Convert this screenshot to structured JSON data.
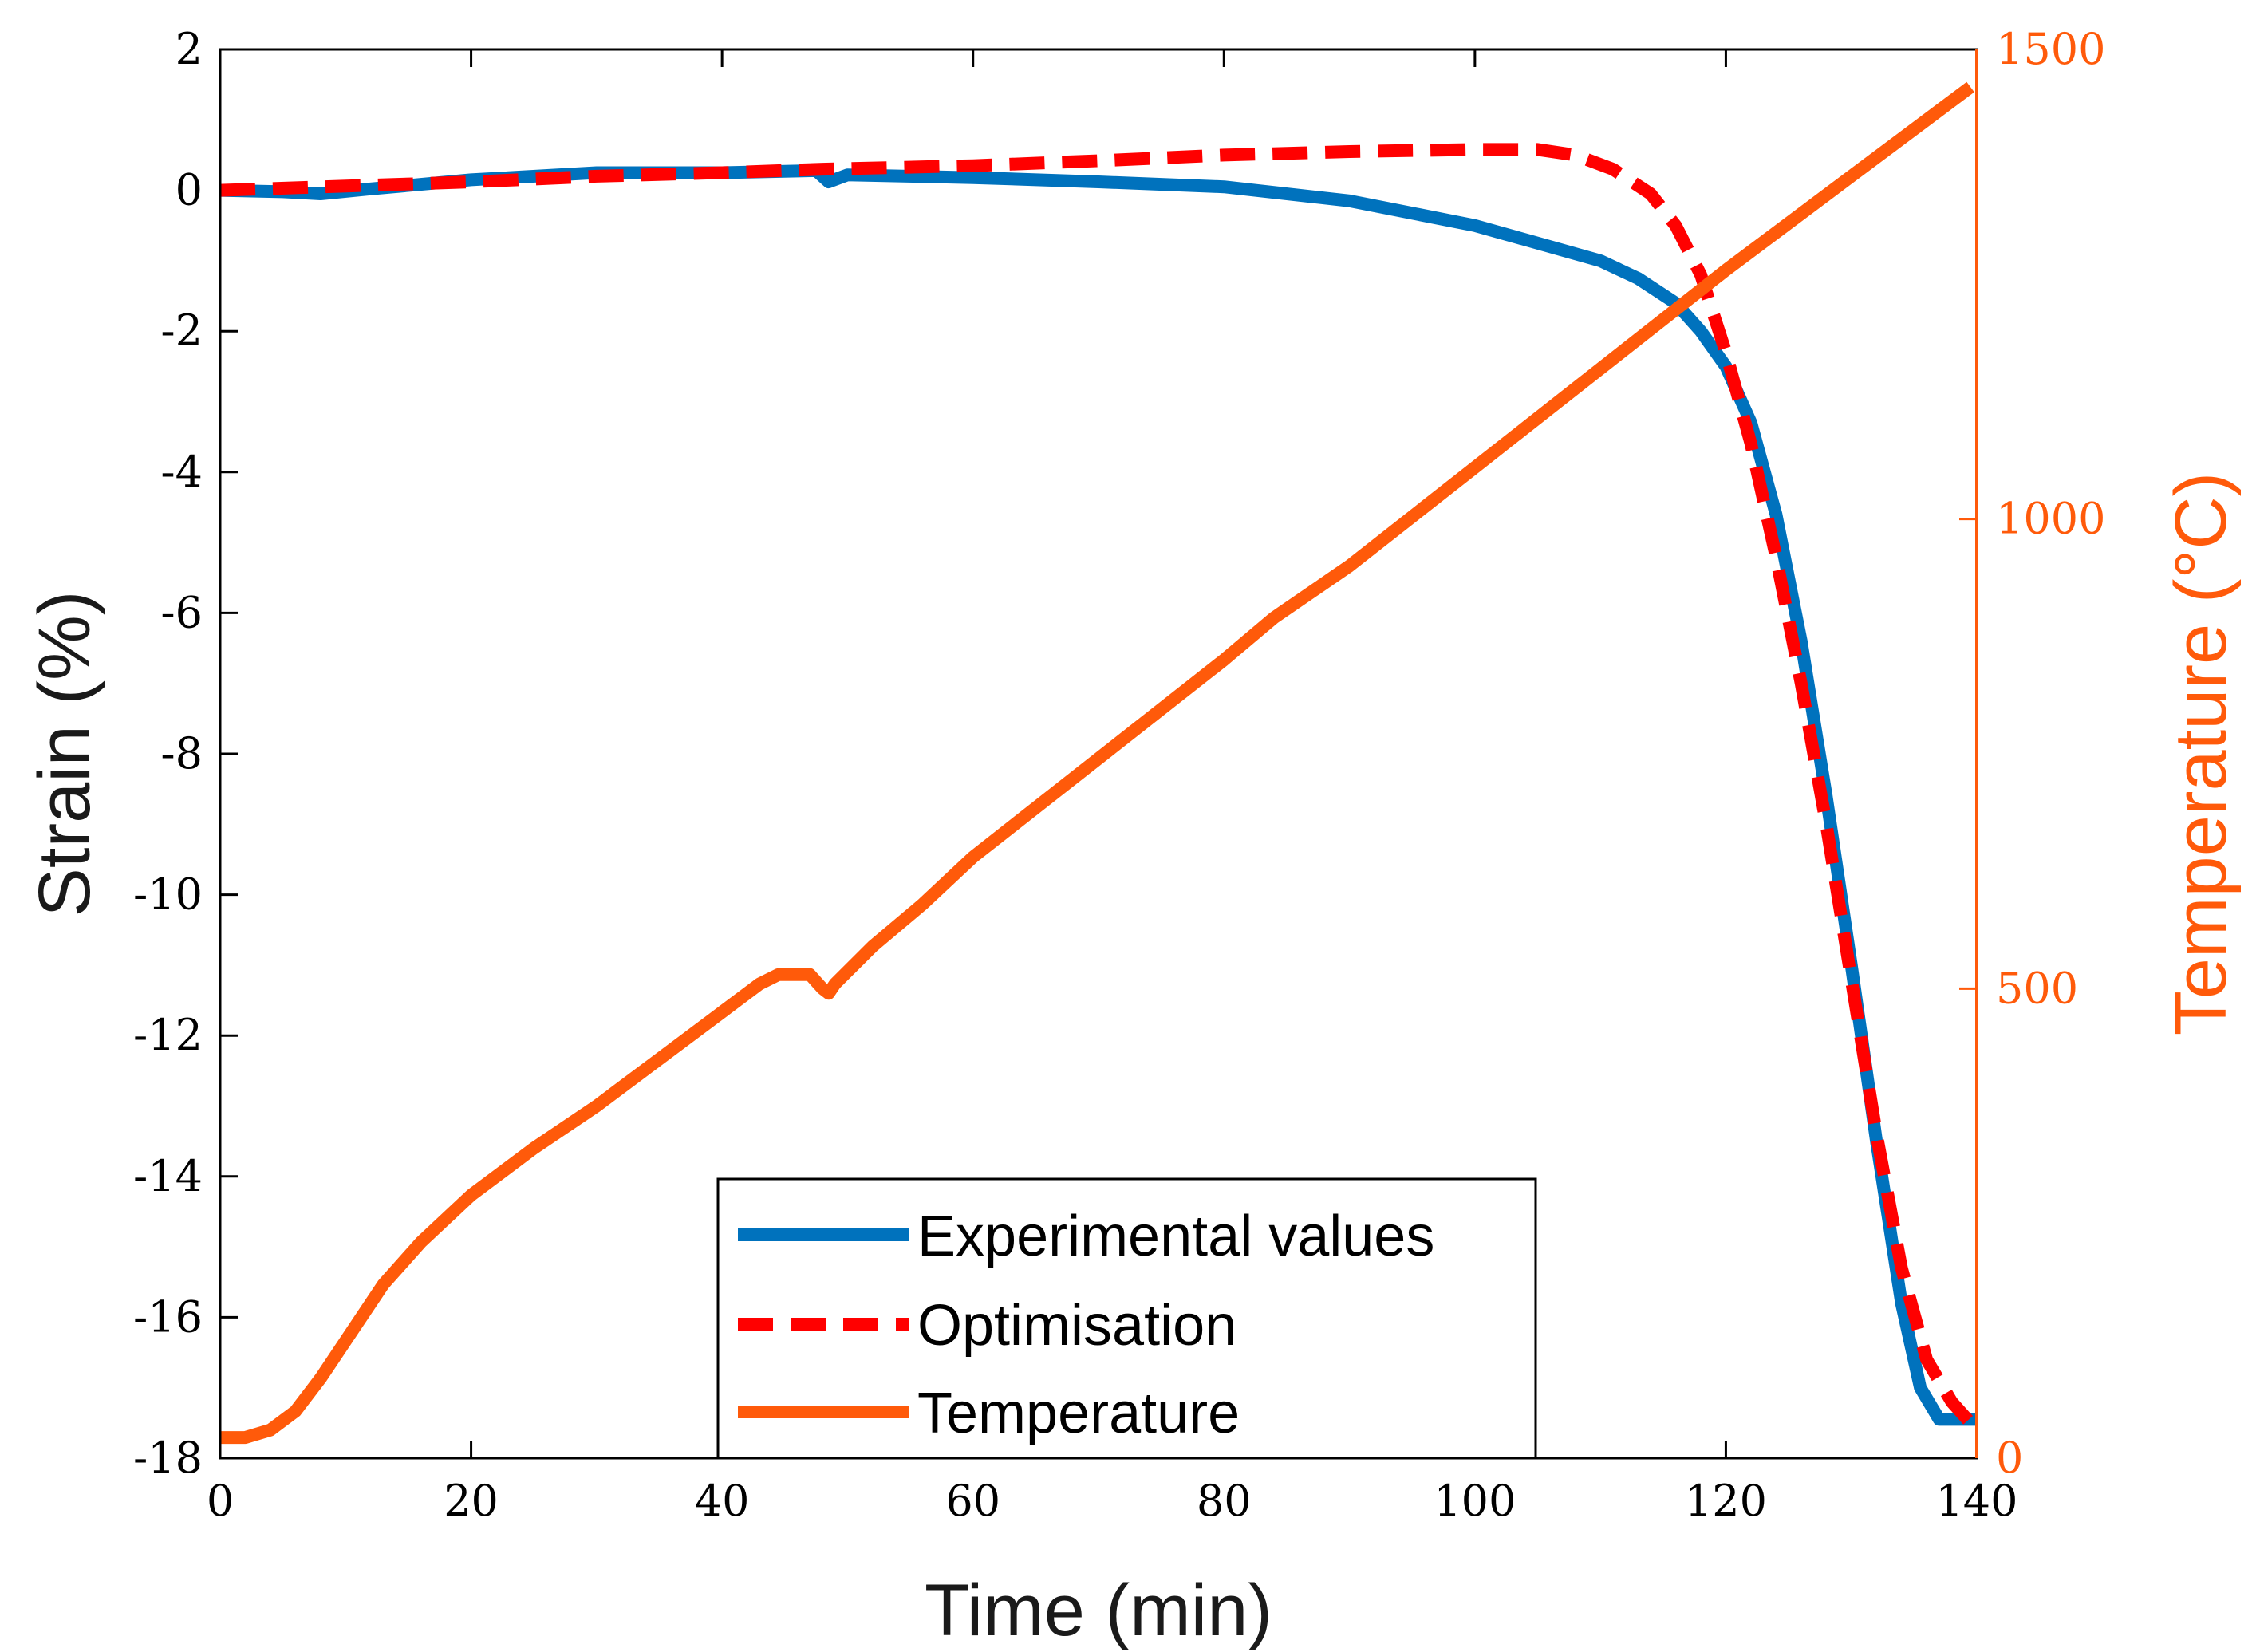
{
  "chart_data": {
    "type": "line",
    "title": "",
    "xlabel": "Time (min)",
    "ylabel_left": "Strain (%)",
    "ylabel_right": "Temperature (°C)",
    "xlim": [
      0,
      140
    ],
    "ylim_left": [
      -18,
      2
    ],
    "ylim_right": [
      0,
      1500
    ],
    "x_ticks": [
      "0",
      "20",
      "40",
      "60",
      "80",
      "100",
      "120",
      "140"
    ],
    "y_left_ticks": [
      "2",
      "0",
      "-2",
      "-4",
      "-6",
      "-8",
      "-10",
      "-12",
      "-14",
      "-16",
      "-18"
    ],
    "y_right_ticks": [
      "1500",
      "1000",
      "500",
      "0"
    ],
    "grid": false,
    "legend_position": "bottom-center",
    "colors": {
      "experimental": "#0072BD",
      "optimisation": "#FF0000",
      "temperature": "#FF5A0A",
      "right_axis": "#FF5A0A"
    },
    "series": [
      {
        "name": "Experimental values",
        "axis": "left",
        "style": "solid",
        "x": [
          0,
          5,
          8,
          12,
          20,
          30,
          40,
          47.5,
          48.5,
          50,
          60,
          70,
          80,
          90,
          100,
          105,
          110,
          113,
          116,
          118,
          120,
          122,
          124,
          126,
          128,
          130,
          132,
          134,
          135.5,
          137,
          138.5,
          140
        ],
        "y": [
          0,
          -0.02,
          -0.05,
          0.02,
          0.15,
          0.25,
          0.25,
          0.28,
          0.12,
          0.22,
          0.18,
          0.12,
          0.05,
          -0.15,
          -0.5,
          -0.75,
          -1.0,
          -1.25,
          -1.6,
          -2.0,
          -2.5,
          -3.3,
          -4.6,
          -6.4,
          -8.6,
          -11.0,
          -13.5,
          -15.8,
          -17.0,
          -17.45,
          -17.45,
          -17.45
        ]
      },
      {
        "name": "Optimisation",
        "axis": "left",
        "style": "dashed",
        "x": [
          0,
          20,
          30,
          40,
          48,
          60,
          70,
          80,
          90,
          100,
          105,
          108,
          111,
          114,
          116,
          118,
          120,
          122,
          124,
          126,
          128,
          130,
          132,
          134,
          136,
          138,
          139.5
        ],
        "y": [
          0,
          0.12,
          0.2,
          0.25,
          0.3,
          0.35,
          0.42,
          0.5,
          0.55,
          0.58,
          0.58,
          0.5,
          0.3,
          -0.05,
          -0.5,
          -1.2,
          -2.3,
          -3.6,
          -5.2,
          -7.0,
          -9.0,
          -11.2,
          -13.4,
          -15.3,
          -16.6,
          -17.2,
          -17.5
        ]
      },
      {
        "name": "Temperature",
        "axis": "right",
        "style": "solid",
        "x": [
          0,
          2,
          4,
          6,
          8,
          10,
          13,
          16,
          20,
          25,
          30,
          35,
          40,
          43,
          44.5,
          47,
          48,
          48.5,
          49,
          52,
          56,
          60,
          70,
          80,
          84,
          90,
          100,
          110,
          120,
          130,
          139.5
        ],
        "y": [
          22,
          22,
          30,
          50,
          85,
          125,
          185,
          230,
          280,
          330,
          375,
          425,
          475,
          505,
          515,
          515,
          500,
          495,
          505,
          545,
          590,
          640,
          745,
          850,
          895,
          950,
          1055,
          1160,
          1265,
          1365,
          1460
        ]
      }
    ]
  }
}
